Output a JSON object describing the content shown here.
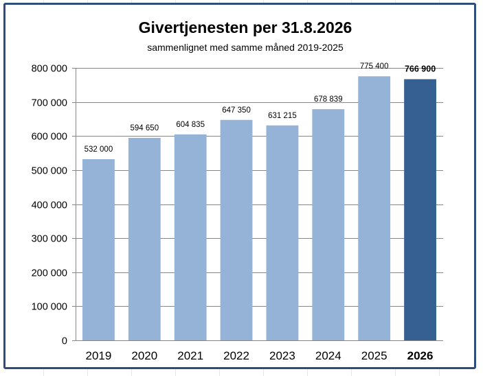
{
  "chart_data": {
    "type": "bar",
    "title": "Givertjenesten per 31.8.2026",
    "subtitle": "sammenlignet med samme måned 2019-2025",
    "categories": [
      "2019",
      "2020",
      "2021",
      "2022",
      "2023",
      "2024",
      "2025",
      "2026"
    ],
    "values": [
      532000,
      594650,
      604835,
      647350,
      631215,
      678839,
      775400,
      766900
    ],
    "data_labels": [
      "532 000",
      "594 650",
      "604 835",
      "647 350",
      "631 215",
      "678 839",
      "775 400",
      "766 900"
    ],
    "ylim": [
      0,
      800000
    ],
    "yticks": [
      0,
      100000,
      200000,
      300000,
      400000,
      500000,
      600000,
      700000,
      800000
    ],
    "ytick_labels": [
      "0",
      "100 000",
      "200 000",
      "300 000",
      "400 000",
      "500 000",
      "600 000",
      "700 000",
      "800 000"
    ],
    "highlight_index": 7,
    "grid": true,
    "xlabel": "",
    "ylabel": "",
    "colors": {
      "bar": "#95b3d7",
      "highlight_bar": "#366092",
      "gridline": "#868686",
      "frame": "#2f4d7a"
    }
  }
}
